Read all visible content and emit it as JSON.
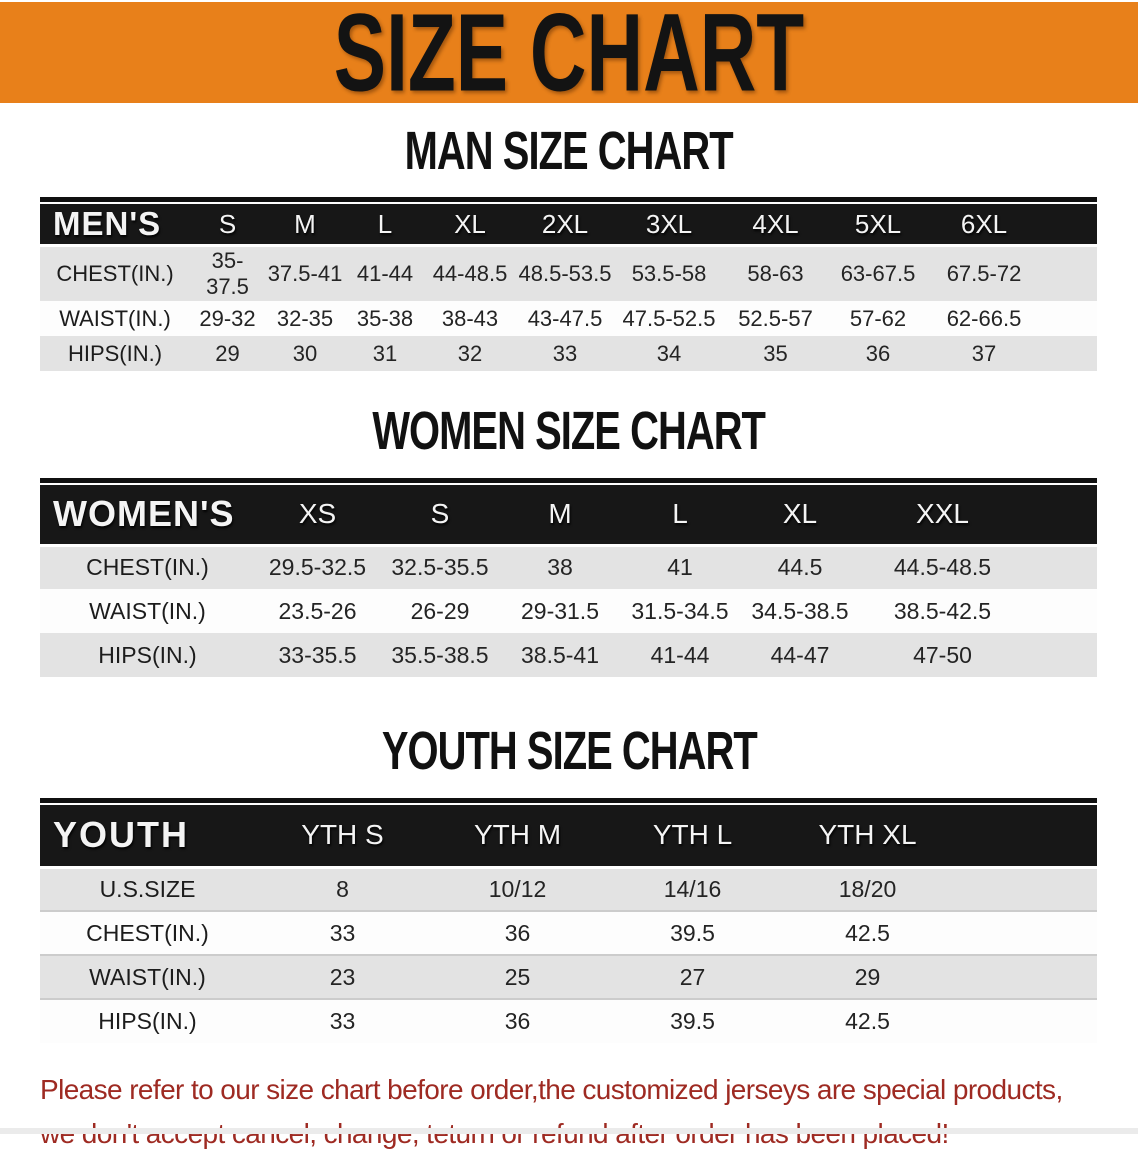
{
  "banner": {
    "title": "SIZE CHART",
    "bg_color": "#e8801a"
  },
  "men": {
    "heading": "MAN SIZE CHART",
    "label": "MEN'S",
    "sizes": [
      "S",
      "M",
      "L",
      "XL",
      "2XL",
      "3XL",
      "4XL",
      "5XL",
      "6XL"
    ],
    "rows": [
      {
        "label": "CHEST(IN.)",
        "values": [
          "35-37.5",
          "37.5-41",
          "41-44",
          "44-48.5",
          "48.5-53.5",
          "53.5-58",
          "58-63",
          "63-67.5",
          "67.5-72"
        ]
      },
      {
        "label": "WAIST(IN.)",
        "values": [
          "29-32",
          "32-35",
          "35-38",
          "38-43",
          "43-47.5",
          "47.5-52.5",
          "52.5-57",
          "57-62",
          "62-66.5"
        ]
      },
      {
        "label": "HIPS(IN.)",
        "values": [
          "29",
          "30",
          "31",
          "32",
          "33",
          "34",
          "35",
          "36",
          "37"
        ]
      }
    ]
  },
  "women": {
    "heading": "WOMEN SIZE CHART",
    "label": "WOMEN'S",
    "sizes": [
      "XS",
      "S",
      "M",
      "L",
      "XL",
      "XXL"
    ],
    "rows": [
      {
        "label": "CHEST(IN.)",
        "values": [
          "29.5-32.5",
          "32.5-35.5",
          "38",
          "41",
          "44.5",
          "44.5-48.5"
        ]
      },
      {
        "label": "WAIST(IN.)",
        "values": [
          "23.5-26",
          "26-29",
          "29-31.5",
          "31.5-34.5",
          "34.5-38.5",
          "38.5-42.5"
        ]
      },
      {
        "label": "HIPS(IN.)",
        "values": [
          "33-35.5",
          "35.5-38.5",
          "38.5-41",
          "41-44",
          "44-47",
          "47-50"
        ]
      }
    ]
  },
  "youth": {
    "heading": "YOUTH SIZE CHART",
    "label": "YOUTH",
    "sizes": [
      "YTH S",
      "YTH M",
      "YTH L",
      "YTH XL"
    ],
    "rows": [
      {
        "label": "U.S.SIZE",
        "values": [
          "8",
          "10/12",
          "14/16",
          "18/20"
        ]
      },
      {
        "label": "CHEST(IN.)",
        "values": [
          "33",
          "36",
          "39.5",
          "42.5"
        ]
      },
      {
        "label": "WAIST(IN.)",
        "values": [
          "23",
          "25",
          "27",
          "29"
        ]
      },
      {
        "label": "HIPS(IN.)",
        "values": [
          "33",
          "36",
          "39.5",
          "42.5"
        ]
      }
    ]
  },
  "disclaimer": {
    "line1": "Please refer to our size chart before order,the customized jerseys are special products,",
    "line2": "we don't accept cancel, change, teturn or refund after order has been placed!",
    "color": "#9e2a22"
  }
}
